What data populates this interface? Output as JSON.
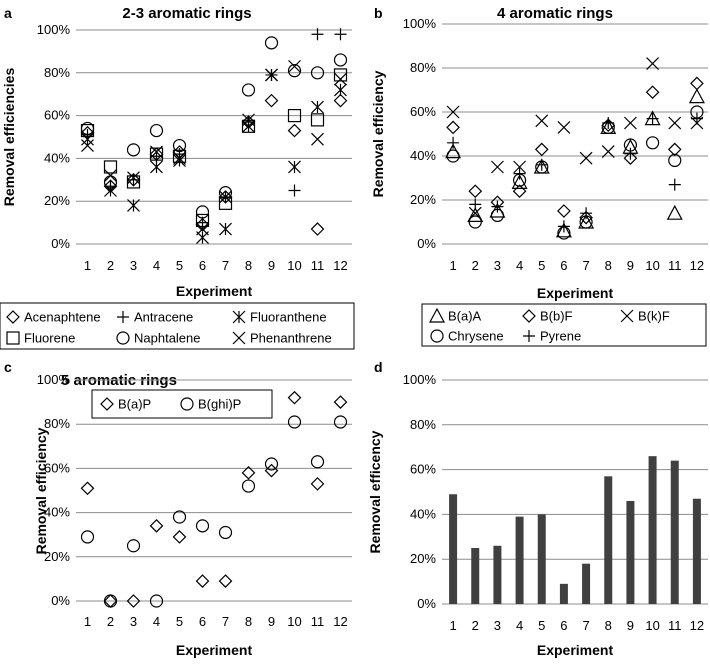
{
  "chart_data": [
    {
      "panel": "a",
      "type": "scatter",
      "title": "2-3 aromatic rings",
      "xlabel": "Experiment",
      "ylabel": "Removal efficiencies",
      "ylim": [
        0,
        100
      ],
      "yticks": [
        "0%",
        "20%",
        "40%",
        "60%",
        "80%",
        "100%"
      ],
      "categories": [
        "1",
        "2",
        "3",
        "4",
        "5",
        "6",
        "7",
        "8",
        "9",
        "10",
        "11",
        "12"
      ],
      "legend_position": "bottom",
      "series": [
        {
          "name": "Acenaphtene",
          "marker": "diamond",
          "values": [
            52,
            27,
            30,
            42,
            43,
            9,
            22,
            57,
            67,
            53,
            7,
            67
          ]
        },
        {
          "name": "Antracene",
          "marker": "plus",
          "values": [
            51,
            27,
            30,
            41,
            42,
            10,
            22,
            57,
            79,
            25,
            98,
            98
          ]
        },
        {
          "name": "Fluoranthene",
          "marker": "asterisk",
          "values": [
            49,
            25,
            18,
            36,
            39,
            3,
            7,
            55,
            79,
            36,
            64,
            72
          ]
        },
        {
          "name": "Fluorene",
          "marker": "square",
          "values": [
            53,
            36,
            29,
            42,
            41,
            11,
            19,
            55,
            null,
            60,
            58,
            79
          ]
        },
        {
          "name": "Naphtalene",
          "marker": "circle",
          "values": [
            54,
            29,
            44,
            53,
            46,
            15,
            24,
            72,
            94,
            81,
            80,
            86
          ]
        },
        {
          "name": "Phenanthrene",
          "marker": "x",
          "values": [
            46,
            32,
            31,
            43,
            40,
            7,
            22,
            58,
            79,
            83,
            49,
            77
          ]
        }
      ]
    },
    {
      "panel": "b",
      "type": "scatter",
      "title": "4 aromatic rings",
      "xlabel": "Experiment",
      "ylabel": "Removal efficiency",
      "ylim": [
        0,
        100
      ],
      "yticks": [
        "0%",
        "20%",
        "40%",
        "60%",
        "80%",
        "100%"
      ],
      "categories": [
        "1",
        "2",
        "3",
        "4",
        "5",
        "6",
        "7",
        "8",
        "9",
        "10",
        "11",
        "12"
      ],
      "legend_position": "bottom",
      "series": [
        {
          "name": "B(a)A",
          "marker": "triangle",
          "values": [
            42,
            13,
            15,
            28,
            35,
            6,
            10,
            53,
            44,
            57,
            14,
            67
          ]
        },
        {
          "name": "B(b)F",
          "marker": "diamond",
          "values": [
            53,
            24,
            19,
            24,
            43,
            15,
            12,
            54,
            39,
            69,
            43,
            73
          ]
        },
        {
          "name": "B(k)F",
          "marker": "x",
          "values": [
            60,
            14,
            35,
            35,
            56,
            53,
            39,
            42,
            55,
            82,
            55,
            55
          ]
        },
        {
          "name": "Chrysene",
          "marker": "circle",
          "values": [
            40,
            10,
            13,
            29,
            35,
            5,
            10,
            53,
            45,
            46,
            38,
            60
          ]
        },
        {
          "name": "Pyrene",
          "marker": "plus",
          "values": [
            46,
            18,
            17,
            32,
            36,
            8,
            14,
            55,
            41,
            57,
            27,
            57
          ]
        }
      ]
    },
    {
      "panel": "c",
      "type": "scatter",
      "title": "5 aromatic rings",
      "xlabel": "Experiment",
      "ylabel": "Removal efficiency",
      "ylim": [
        0,
        100
      ],
      "yticks": [
        "0%",
        "20%",
        "40%",
        "60%",
        "80%",
        "100%"
      ],
      "categories": [
        "1",
        "2",
        "3",
        "4",
        "5",
        "6",
        "7",
        "8",
        "9",
        "10",
        "11",
        "12"
      ],
      "legend_position": "top-left",
      "series": [
        {
          "name": "B(a)P",
          "marker": "diamond",
          "values": [
            51,
            0,
            0,
            34,
            29,
            9,
            9,
            58,
            59,
            92,
            53,
            90
          ]
        },
        {
          "name": "B(ghi)P",
          "marker": "circle",
          "values": [
            29,
            0,
            25,
            0,
            38,
            34,
            31,
            52,
            62,
            81,
            63,
            81
          ]
        }
      ]
    },
    {
      "panel": "d",
      "type": "bar",
      "title": "",
      "xlabel": "Experiment",
      "ylabel": "Removal efficency",
      "ylim": [
        0,
        100
      ],
      "yticks": [
        "0%",
        "20%",
        "40%",
        "60%",
        "80%",
        "100%"
      ],
      "categories": [
        "1",
        "2",
        "3",
        "4",
        "5",
        "6",
        "7",
        "8",
        "9",
        "10",
        "11",
        "12"
      ],
      "values": [
        49,
        25,
        26,
        39,
        40,
        9,
        18,
        57,
        46,
        66,
        64,
        47
      ]
    }
  ]
}
